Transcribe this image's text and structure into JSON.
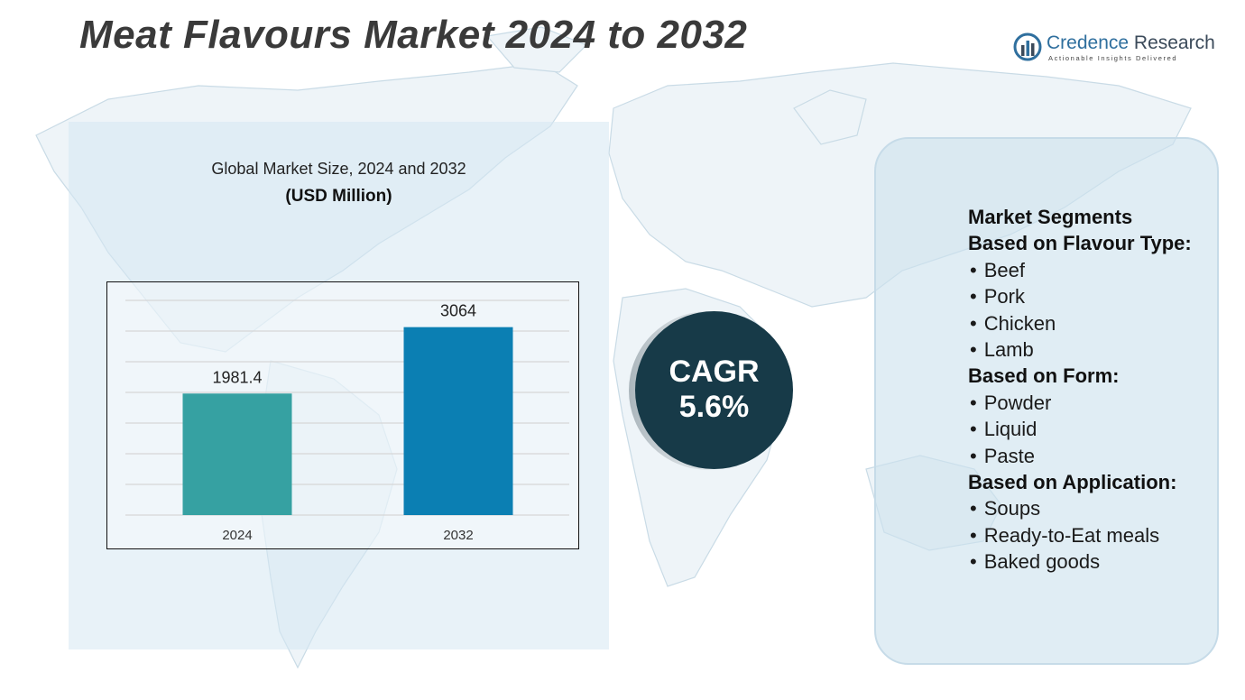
{
  "title": "Meat Flavours Market 2024 to 2032",
  "brand": {
    "name_part1": "Credence",
    "name_part2": "Research",
    "tagline": "Actionable Insights Delivered"
  },
  "chart_header": {
    "subtitle": "Global Market Size, 2024 and 2032",
    "unit": "(USD Million)"
  },
  "chart_data": {
    "type": "bar",
    "categories": [
      "2024",
      "2032"
    ],
    "values": [
      1981.4,
      3064
    ],
    "value_labels": [
      "1981.4",
      "3064"
    ],
    "colors": [
      "#36a1a2",
      "#0b7fb3"
    ],
    "title": "Global Market Size, 2024 and 2032",
    "ylabel": "USD Million",
    "xlabel": "",
    "ylim": [
      0,
      3500
    ],
    "grid": true
  },
  "cagr": {
    "label": "CAGR",
    "value": "5.6%"
  },
  "segments": {
    "title": "Market Segments",
    "groups": [
      {
        "heading": "Based on Flavour Type:",
        "items": [
          "Beef",
          "Pork",
          "Chicken",
          "Lamb"
        ]
      },
      {
        "heading": "Based on Form:",
        "items": [
          "Powder",
          "Liquid",
          "Paste"
        ]
      },
      {
        "heading": "Based on Application:",
        "items": [
          "Soups",
          "Ready-to-Eat meals",
          "Baked goods"
        ]
      }
    ]
  }
}
